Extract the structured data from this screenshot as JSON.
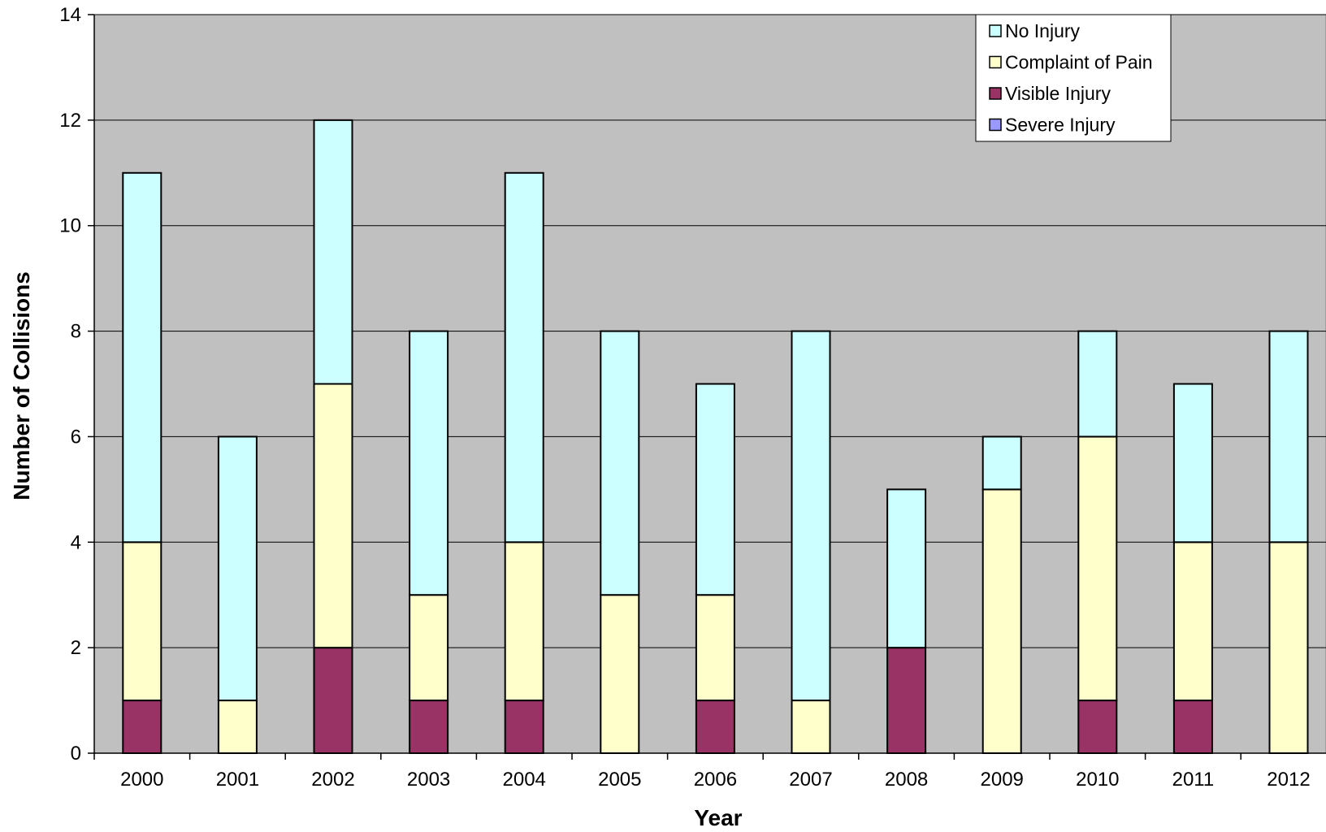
{
  "chart_data": {
    "type": "bar",
    "stacked": true,
    "title": "",
    "xlabel": "Year",
    "ylabel": "Number of Collisions",
    "ylim": [
      0,
      14
    ],
    "yticks": [
      0,
      2,
      4,
      6,
      8,
      10,
      12,
      14
    ],
    "grid": true,
    "legend_position": "top-right",
    "categories": [
      "2000",
      "2001",
      "2002",
      "2003",
      "2004",
      "2005",
      "2006",
      "2007",
      "2008",
      "2009",
      "2010",
      "2011",
      "2012"
    ],
    "series": [
      {
        "name": "Severe Injury",
        "color": "#9999ff",
        "values": [
          0,
          0,
          0,
          0,
          0,
          0,
          0,
          0,
          0,
          0,
          0,
          0,
          0
        ]
      },
      {
        "name": "Visible Injury",
        "color": "#993366",
        "values": [
          1,
          0,
          2,
          1,
          1,
          0,
          1,
          0,
          2,
          0,
          1,
          1,
          0
        ]
      },
      {
        "name": "Complaint of Pain",
        "color": "#ffffcc",
        "values": [
          3,
          1,
          5,
          2,
          3,
          3,
          2,
          1,
          0,
          5,
          5,
          3,
          4
        ]
      },
      {
        "name": "No Injury",
        "color": "#ccffff",
        "values": [
          7,
          5,
          5,
          5,
          7,
          5,
          4,
          7,
          3,
          1,
          2,
          3,
          4
        ]
      }
    ],
    "legend_order": [
      "No Injury",
      "Complaint of Pain",
      "Visible Injury",
      "Severe Injury"
    ],
    "plot_background": "#c0c0c0"
  }
}
